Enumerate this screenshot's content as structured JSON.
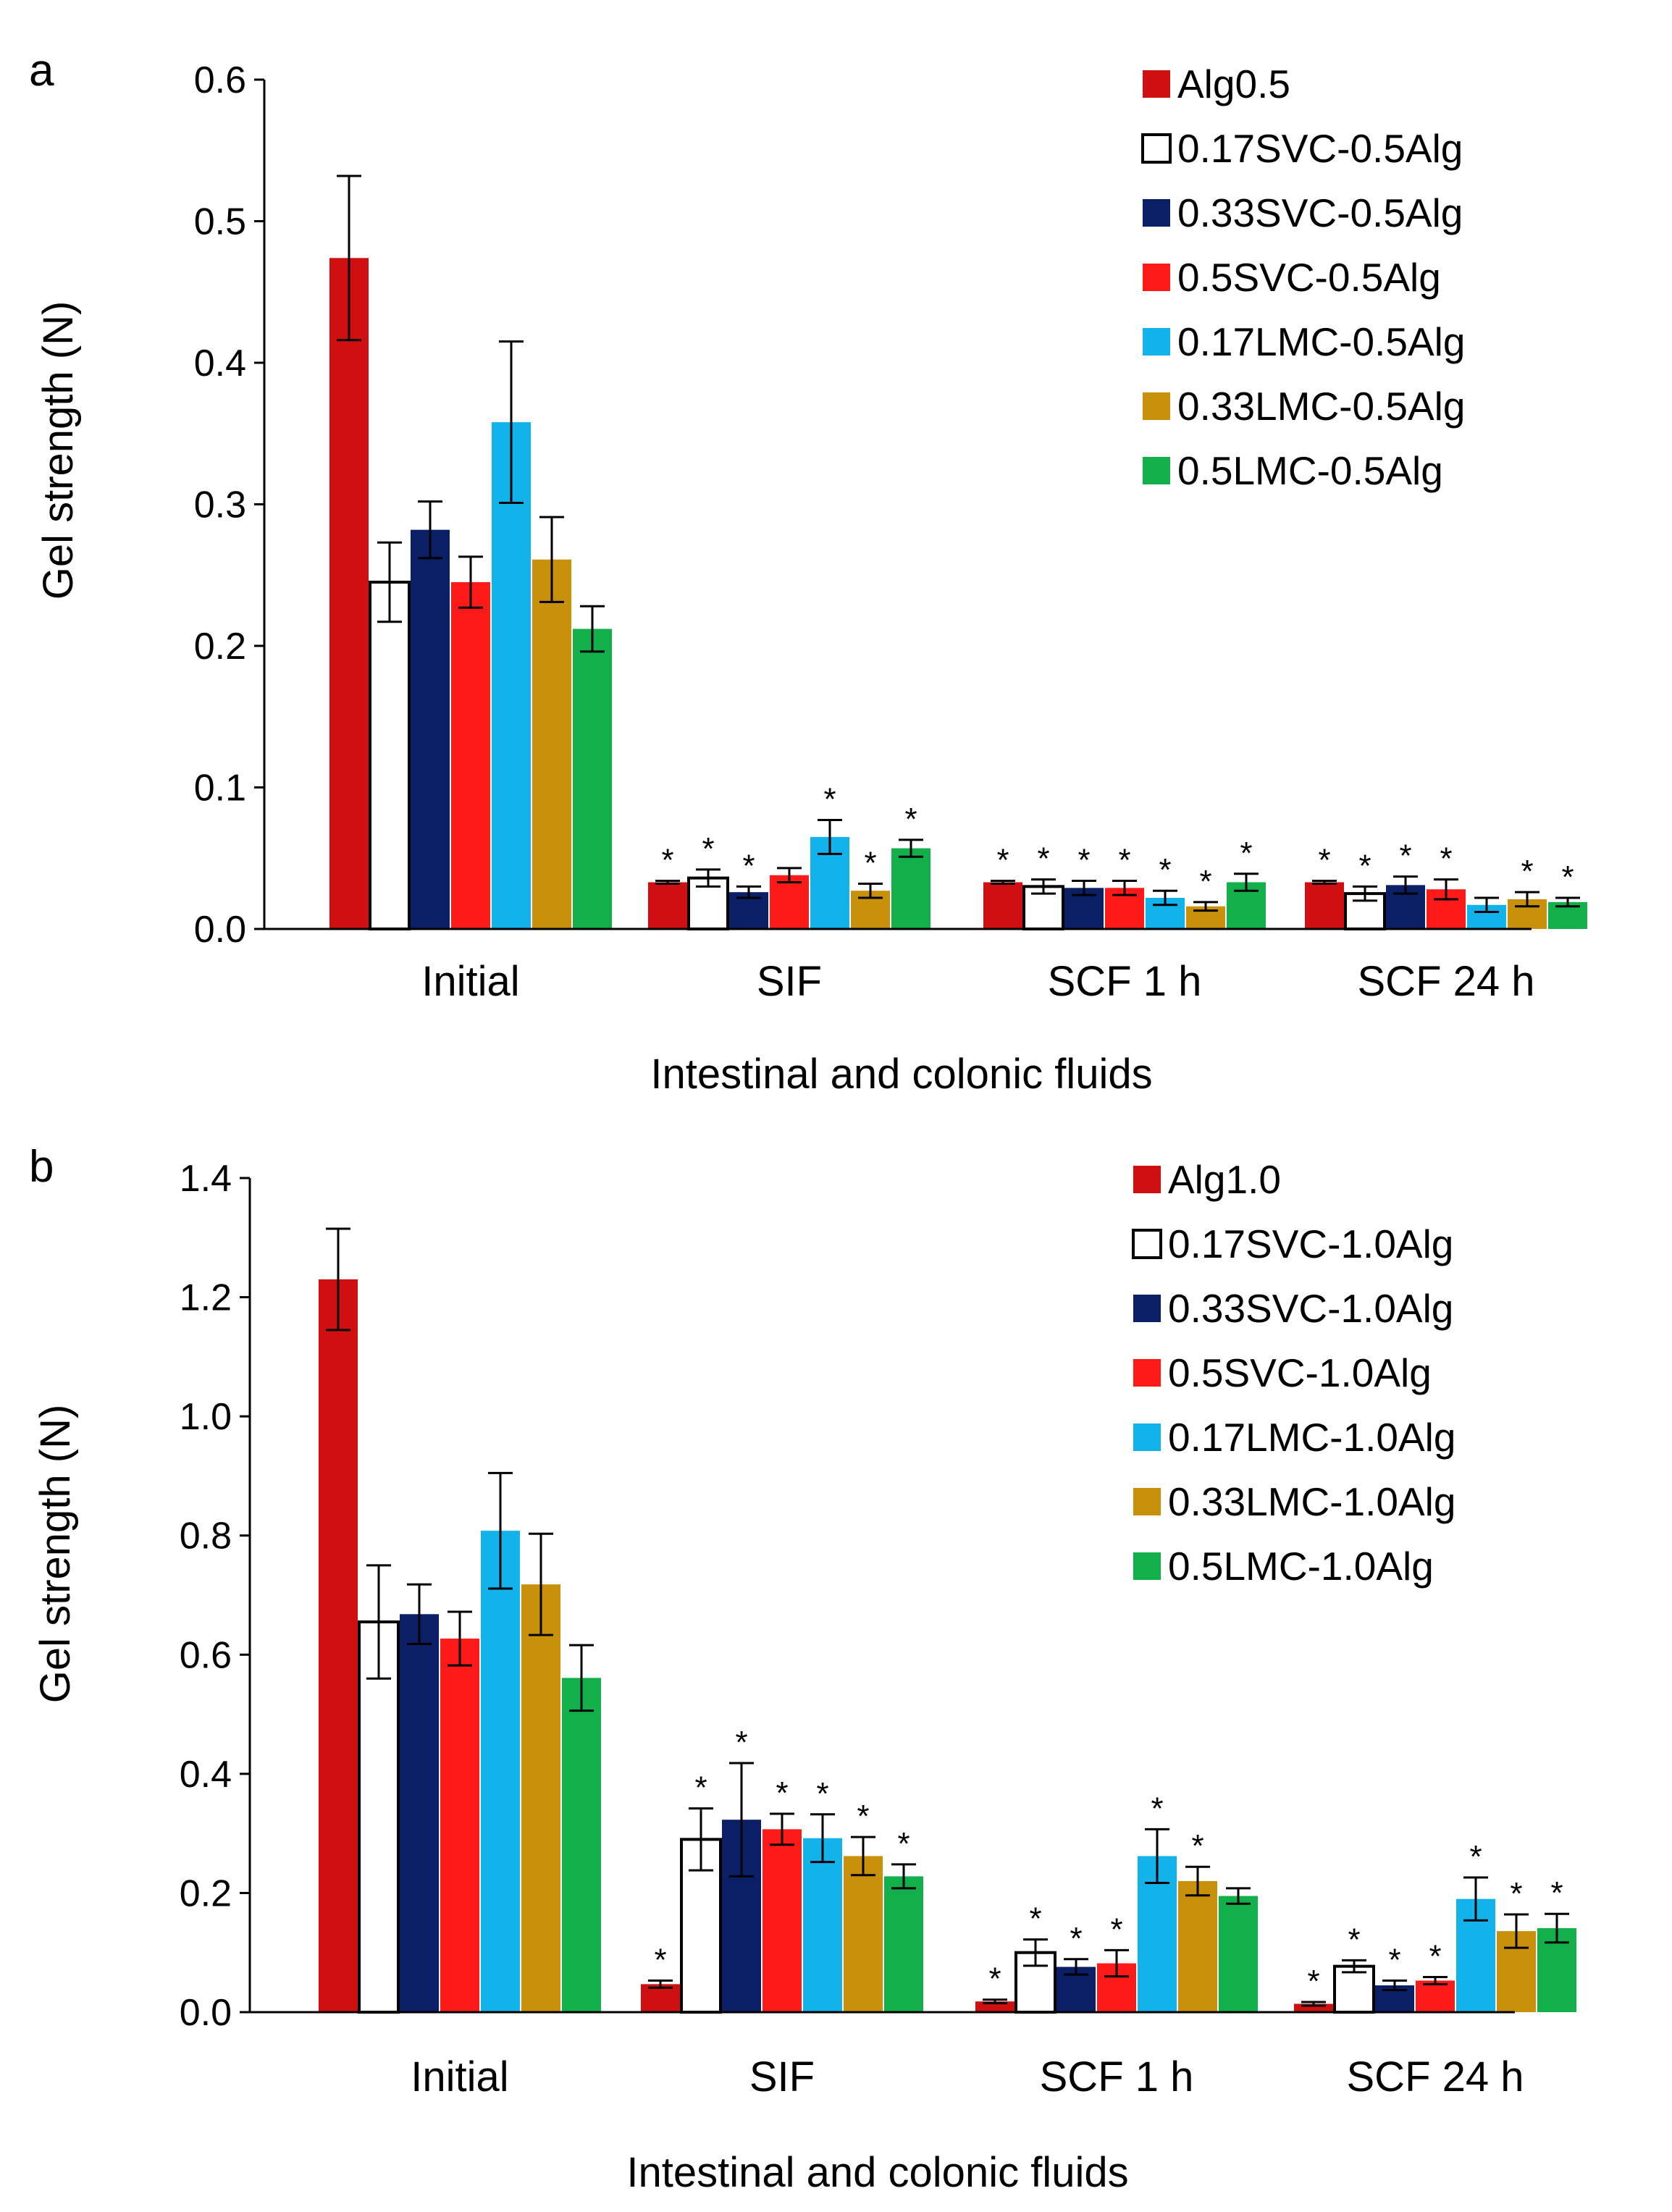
{
  "series_colors": [
    "#d01010",
    "#ffffff",
    "#0b1f66",
    "#ff1a1a",
    "#12b2ea",
    "#c9900a",
    "#12b04a"
  ],
  "chart_data": [
    {
      "type": "bar",
      "panel_label": "a",
      "xlabel": "Intestinal and colonic fluids",
      "ylabel": "Gel strength (N)",
      "ylim": [
        0,
        0.6
      ],
      "yticks": [
        0,
        0.1,
        0.2,
        0.3,
        0.4,
        0.5,
        0.6
      ],
      "ytick_labels": [
        "0.0",
        "0.1",
        "0.2",
        "0.3",
        "0.4",
        "0.5",
        "0.6"
      ],
      "categories": [
        "Initial",
        "SIF",
        "SCF 1 h",
        "SCF 24 h"
      ],
      "legend_position": "top-right",
      "series": [
        {
          "name": "Alg0.5",
          "values": [
            0.474,
            0.033,
            0.033,
            0.033
          ],
          "errors": [
            0.058,
            0.001,
            0.001,
            0.001
          ],
          "significant": [
            false,
            true,
            true,
            true
          ]
        },
        {
          "name": "0.17SVC-0.5Alg",
          "values": [
            0.245,
            0.036,
            0.03,
            0.025
          ],
          "errors": [
            0.028,
            0.006,
            0.005,
            0.005
          ],
          "significant": [
            false,
            true,
            true,
            true
          ]
        },
        {
          "name": "0.33SVC-0.5Alg",
          "values": [
            0.282,
            0.026,
            0.029,
            0.031
          ],
          "errors": [
            0.02,
            0.004,
            0.005,
            0.006
          ],
          "significant": [
            false,
            true,
            true,
            true
          ]
        },
        {
          "name": "0.5SVC-0.5Alg",
          "values": [
            0.245,
            0.038,
            0.029,
            0.028
          ],
          "errors": [
            0.018,
            0.005,
            0.005,
            0.007
          ],
          "significant": [
            false,
            false,
            true,
            true
          ]
        },
        {
          "name": "0.17LMC-0.5Alg",
          "values": [
            0.358,
            0.065,
            0.022,
            0.017
          ],
          "errors": [
            0.057,
            0.012,
            0.005,
            0.005
          ],
          "significant": [
            false,
            true,
            true,
            false
          ]
        },
        {
          "name": "0.33LMC-0.5Alg",
          "values": [
            0.261,
            0.027,
            0.016,
            0.021
          ],
          "errors": [
            0.03,
            0.005,
            0.003,
            0.005
          ],
          "significant": [
            false,
            true,
            true,
            true
          ]
        },
        {
          "name": "0.5LMC-0.5Alg",
          "values": [
            0.212,
            0.057,
            0.033,
            0.019
          ],
          "errors": [
            0.016,
            0.006,
            0.006,
            0.003
          ],
          "significant": [
            false,
            true,
            true,
            true
          ]
        }
      ]
    },
    {
      "type": "bar",
      "panel_label": "b",
      "xlabel": "Intestinal and colonic fluids",
      "ylabel": "Gel strength (N)",
      "ylim": [
        0,
        1.4
      ],
      "yticks": [
        0,
        0.2,
        0.4,
        0.6,
        0.8,
        1.0,
        1.2,
        1.4
      ],
      "ytick_labels": [
        "0.0",
        "0.2",
        "0.4",
        "0.6",
        "0.8",
        "1.0",
        "1.2",
        "1.4"
      ],
      "categories": [
        "Initial",
        "SIF",
        "SCF 1 h",
        "SCF 24 h"
      ],
      "legend_position": "top-right",
      "series": [
        {
          "name": "Alg1.0",
          "values": [
            1.23,
            0.047,
            0.018,
            0.014
          ],
          "errors": [
            0.085,
            0.006,
            0.003,
            0.003
          ],
          "significant": [
            false,
            true,
            true,
            true
          ]
        },
        {
          "name": "0.17SVC-1.0Alg",
          "values": [
            0.655,
            0.29,
            0.1,
            0.077
          ],
          "errors": [
            0.095,
            0.052,
            0.022,
            0.01
          ],
          "significant": [
            false,
            true,
            true,
            true
          ]
        },
        {
          "name": "0.33SVC-1.0Alg",
          "values": [
            0.668,
            0.323,
            0.076,
            0.045
          ],
          "errors": [
            0.05,
            0.095,
            0.013,
            0.008
          ],
          "significant": [
            false,
            true,
            true,
            true
          ]
        },
        {
          "name": "0.5SVC-1.0Alg",
          "values": [
            0.627,
            0.307,
            0.082,
            0.053
          ],
          "errors": [
            0.045,
            0.026,
            0.022,
            0.006
          ],
          "significant": [
            false,
            true,
            true,
            true
          ]
        },
        {
          "name": "0.17LMC-1.0Alg",
          "values": [
            0.808,
            0.292,
            0.262,
            0.19
          ],
          "errors": [
            0.097,
            0.04,
            0.045,
            0.036
          ],
          "significant": [
            false,
            true,
            true,
            true
          ]
        },
        {
          "name": "0.33LMC-1.0Alg",
          "values": [
            0.718,
            0.262,
            0.22,
            0.136
          ],
          "errors": [
            0.085,
            0.032,
            0.024,
            0.028
          ],
          "significant": [
            false,
            true,
            true,
            true
          ]
        },
        {
          "name": "0.5LMC-1.0Alg",
          "values": [
            0.561,
            0.228,
            0.195,
            0.141
          ],
          "errors": [
            0.055,
            0.02,
            0.013,
            0.024
          ],
          "significant": [
            false,
            true,
            false,
            true
          ]
        }
      ]
    }
  ]
}
